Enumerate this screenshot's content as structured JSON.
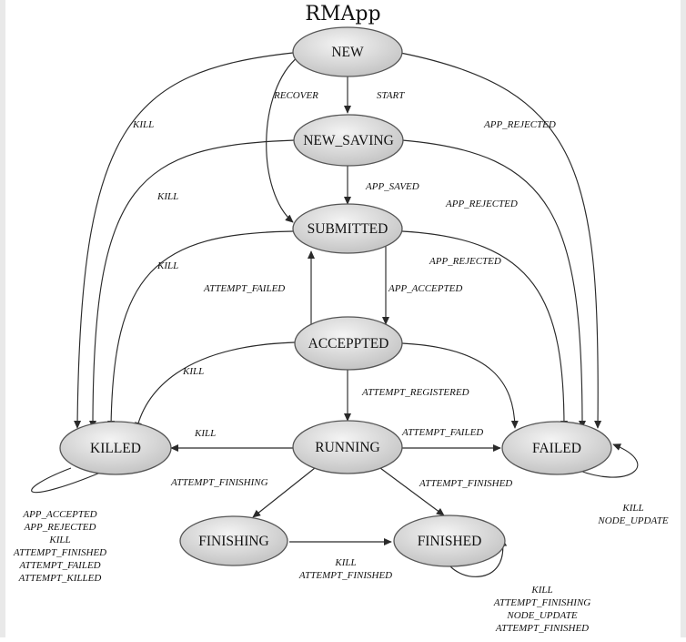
{
  "diagram": {
    "title": "RMApp",
    "states": {
      "new": "NEW",
      "new_saving": "NEW_SAVING",
      "submitted": "SUBMITTED",
      "accepted": "ACCEPPTED",
      "running": "RUNNING",
      "killed": "KILLED",
      "failed": "FAILED",
      "finishing": "FINISHING",
      "finished": "FINISHED"
    },
    "transitions": {
      "new_recover": "RECOVER",
      "new_start": "START",
      "new_kill": "KILL",
      "new_app_rejected": "APP_REJECTED",
      "saving_kill": "KILL",
      "saving_app_saved": "APP_SAVED",
      "saving_app_rejected": "APP_REJECTED",
      "submitted_kill": "KILL",
      "submitted_app_rejected": "APP_REJECTED",
      "submitted_app_accepted": "APP_ACCEPTED",
      "accepted_attempt_failed": "ATTEMPT_FAILED",
      "accepted_kill": "KILL",
      "accepted_attempt_registered": "ATTEMPT_REGISTERED",
      "running_kill": "KILL",
      "running_attempt_failed": "ATTEMPT_FAILED",
      "running_attempt_finishing": "ATTEMPT_FINISHING",
      "running_attempt_finished": "ATTEMPT_FINISHED",
      "finishing_kill": "KILL",
      "finishing_attempt_finished": "ATTEMPT_FINISHED"
    },
    "self_loops": {
      "killed": [
        "APP_ACCEPTED",
        "APP_REJECTED",
        "KILL",
        "ATTEMPT_FINISHED",
        "ATTEMPT_FAILED",
        "ATTEMPT_KILLED"
      ],
      "failed": [
        "KILL",
        "NODE_UPDATE"
      ],
      "finished": [
        "KILL",
        "ATTEMPT_FINISHING",
        "NODE_UPDATE",
        "ATTEMPT_FINISHED"
      ]
    },
    "colors": {
      "node_fill_light": "#f4f4f4",
      "node_fill_dark": "#bdbdbd",
      "node_stroke": "#555555",
      "edge": "#2a2a2a",
      "frame": "#e9e9e9"
    }
  }
}
